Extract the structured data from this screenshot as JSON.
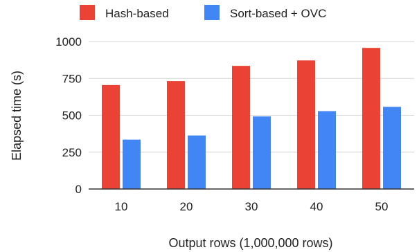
{
  "chart_data": {
    "type": "bar",
    "xlabel": "Output rows (1,000,000 rows)",
    "ylabel": "Elapsed time (s)",
    "categories": [
      "10",
      "20",
      "30",
      "40",
      "50"
    ],
    "ylim": [
      0,
      1000
    ],
    "yticks": [
      "0",
      "250",
      "500",
      "750",
      "1000"
    ],
    "grid": true,
    "legend_position": "top",
    "series": [
      {
        "name": "Hash-based",
        "color": "#ea4335",
        "values": [
          705,
          732,
          835,
          872,
          957
        ]
      },
      {
        "name": "Sort-based + OVC",
        "color": "#4285f4",
        "values": [
          335,
          363,
          492,
          528,
          557
        ]
      }
    ]
  }
}
